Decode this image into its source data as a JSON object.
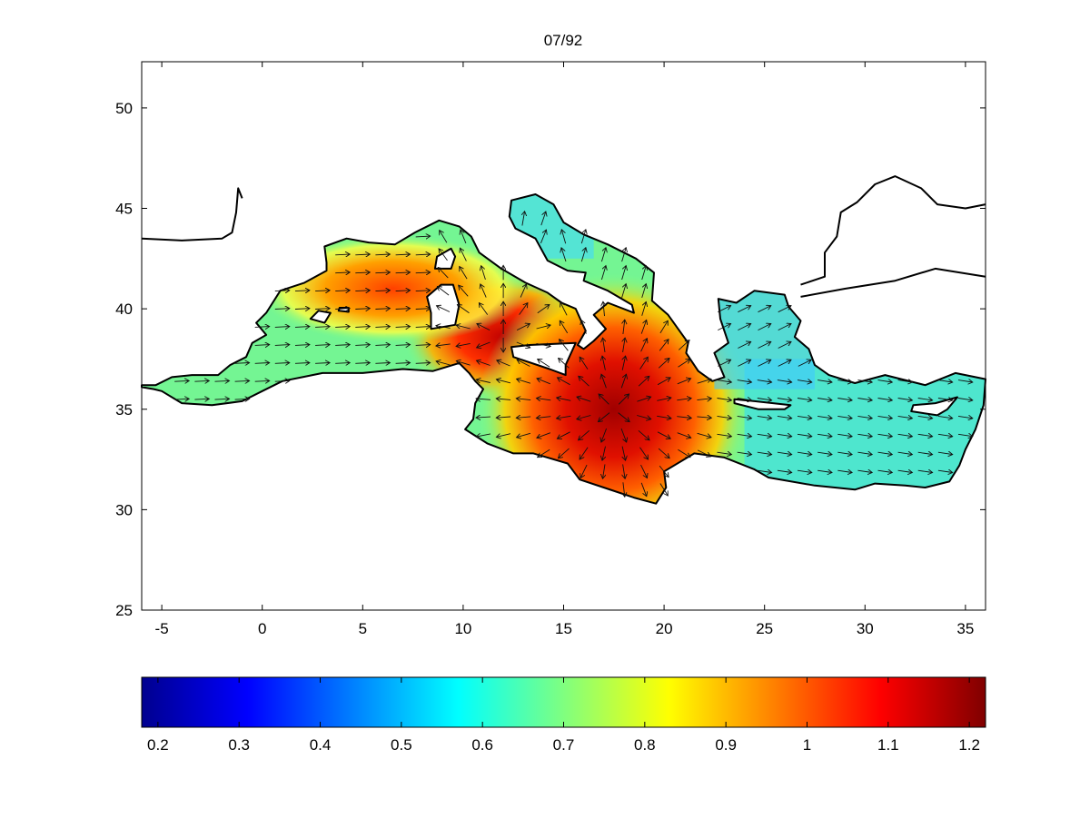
{
  "title": "07/92",
  "map": {
    "x_ticks": [
      -5,
      0,
      5,
      10,
      15,
      20,
      25,
      30,
      35
    ],
    "y_ticks": [
      25,
      30,
      35,
      40,
      45,
      50
    ],
    "xlim": [
      -6,
      36
    ],
    "ylim": [
      25,
      52.3
    ],
    "field_hot_spots": [
      {
        "lon": 17.5,
        "lat": 35.0,
        "value": 1.2
      },
      {
        "lon": 12.0,
        "lat": 38.5,
        "value": 1.1
      },
      {
        "lon": 7.0,
        "lat": 41.0,
        "value": 0.95
      }
    ],
    "flow": "arrows spread outward from the central Mediterranean (Ionian Sea) toward the coasts"
  },
  "colorbar": {
    "ticks": [
      "0.2",
      "0.3",
      "0.4",
      "0.5",
      "0.6",
      "0.7",
      "0.8",
      "0.9",
      "1",
      "1.1",
      "1.2"
    ],
    "tick_values": [
      0.2,
      0.3,
      0.4,
      0.5,
      0.6,
      0.7,
      0.8,
      0.9,
      1.0,
      1.1,
      1.2
    ],
    "range": [
      0.18,
      1.22
    ],
    "colormap": "jet"
  }
}
